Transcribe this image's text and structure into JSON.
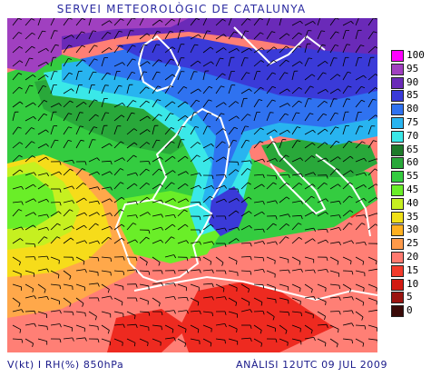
{
  "header": {
    "title": "SERVEI METEOROLÒGIC DE CATALUNYA"
  },
  "footer": {
    "left": "V(kt) I RH(%) 850hPa",
    "right": "ANÀLISI 12UTC 09 JUL 2009"
  },
  "legend": {
    "items": [
      {
        "label": "100",
        "color": "#ff00ff"
      },
      {
        "label": "95",
        "color": "#a040c0"
      },
      {
        "label": "90",
        "color": "#6a2ab8"
      },
      {
        "label": "85",
        "color": "#3a3ad8"
      },
      {
        "label": "80",
        "color": "#2f72f0"
      },
      {
        "label": "75",
        "color": "#28b4f0"
      },
      {
        "label": "70",
        "color": "#3ae8e8"
      },
      {
        "label": "65",
        "color": "#1e7a2a"
      },
      {
        "label": "60",
        "color": "#29a83a"
      },
      {
        "label": "55",
        "color": "#34cc40"
      },
      {
        "label": "45",
        "color": "#6aee28"
      },
      {
        "label": "40",
        "color": "#c6f020"
      },
      {
        "label": "35",
        "color": "#f0e018"
      },
      {
        "label": "30",
        "color": "#ffb020"
      },
      {
        "label": "25",
        "color": "#ff9a4a"
      },
      {
        "label": "20",
        "color": "#ff7a70"
      },
      {
        "label": "15",
        "color": "#f23a2a"
      },
      {
        "label": "10",
        "color": "#d21a12"
      },
      {
        "label": "5",
        "color": "#9a1410"
      },
      {
        "label": "0",
        "color": "#3a0a08"
      }
    ]
  },
  "map": {
    "variable": "relative humidity (%) at 850hPa with wind barbs (kt)",
    "coastline_color": "#ffffff",
    "barb_color": "#000000"
  }
}
